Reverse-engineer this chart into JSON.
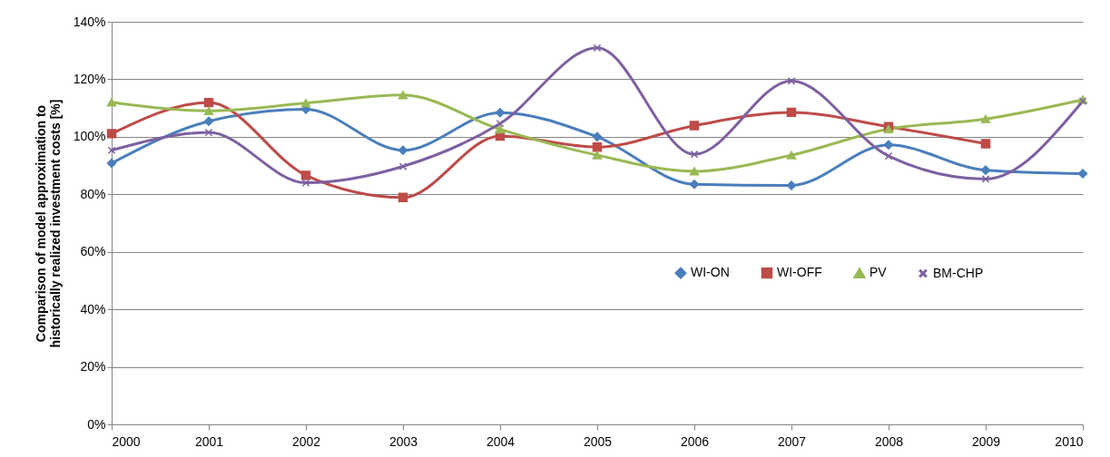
{
  "chart_data": {
    "type": "line",
    "ylabel": "Comparison of model approximation to\nhistorically realized investment costs [%]",
    "categories": [
      "2000",
      "2001",
      "2002",
      "2003",
      "2004",
      "2005",
      "2006",
      "2007",
      "2008",
      "2009",
      "2010"
    ],
    "series": [
      {
        "name": "WI-ON",
        "color": "#4a7ebb",
        "marker": "diamond",
        "values": [
          90.8,
          105.4,
          109.6,
          95.3,
          108.4,
          100,
          83.5,
          83.1,
          97.2,
          88.4,
          87.2
        ]
      },
      {
        "name": "WI-OFF",
        "color": "#be4b48",
        "marker": "square",
        "values": [
          101.1,
          111.9,
          86.6,
          78.9,
          100.3,
          96.4,
          103.9,
          108.5,
          103.5,
          97.6,
          null
        ]
      },
      {
        "name": "PV",
        "color": "#98b954",
        "marker": "triangle",
        "values": [
          112.0,
          109,
          111.7,
          114.5,
          102.6,
          93.6,
          88,
          93.6,
          102.7,
          106.2,
          112.9
        ]
      },
      {
        "name": "BM-CHP",
        "color": "#7d60a0",
        "marker": "cross",
        "values": [
          95.3,
          101.5,
          84.0,
          89.7,
          104.6,
          130.9,
          93.9,
          119.4,
          93.3,
          85.3,
          112.4
        ]
      }
    ],
    "ylim": [
      0,
      140
    ],
    "yticks": [
      {
        "value": 0,
        "label": "0%"
      },
      {
        "value": 20,
        "label": "20%"
      },
      {
        "value": 40,
        "label": "40%"
      },
      {
        "value": 60,
        "label": "60%"
      },
      {
        "value": 80,
        "label": "80%"
      },
      {
        "value": 100,
        "label": "100%"
      },
      {
        "value": 120,
        "label": "120%"
      },
      {
        "value": 140,
        "label": "140%"
      }
    ],
    "grid": "y",
    "legend": "right",
    "line_style": "solid"
  }
}
